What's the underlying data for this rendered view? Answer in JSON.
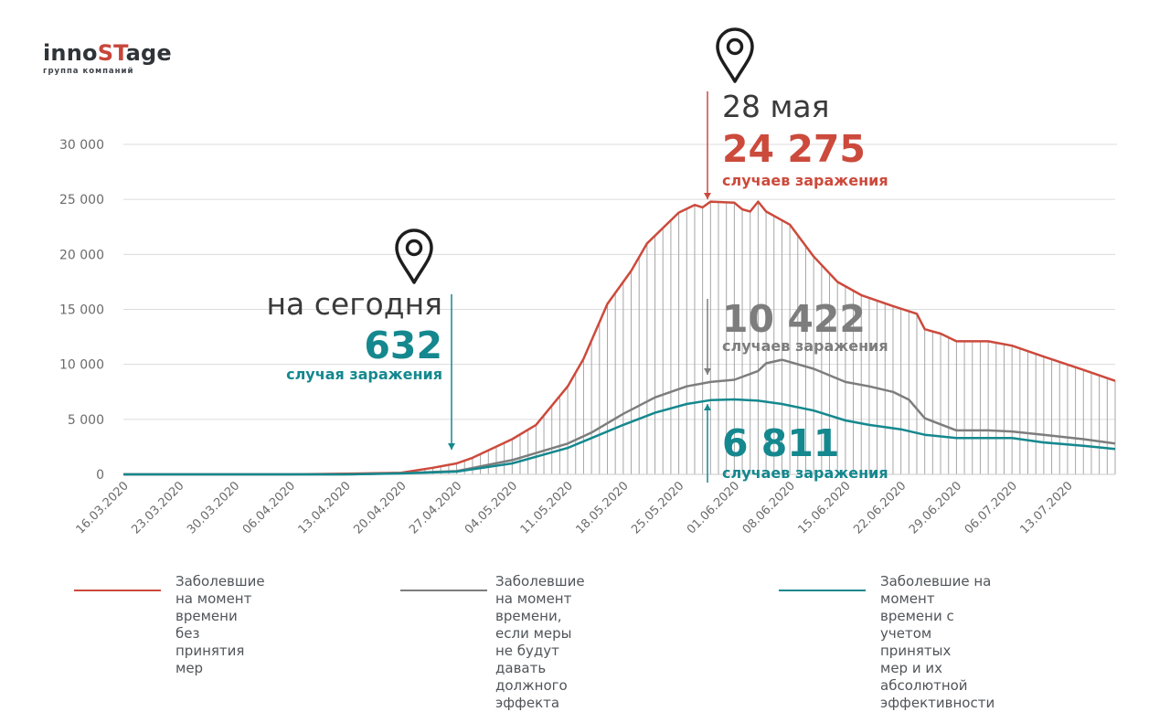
{
  "logo": {
    "word_a": "inno",
    "word_mark": "ST",
    "word_b": "age",
    "subtitle": "группа компаний"
  },
  "colors": {
    "red": "#cc4a3c",
    "gray": "#7d7d7d",
    "teal": "#14888e",
    "hatch": "#a6a6a6",
    "grid": "#dcdcdc",
    "axis_text": "#6b6b6b"
  },
  "annotations": {
    "today": {
      "date": "на сегодня",
      "value": "632",
      "caption": "случая заражения"
    },
    "peak": {
      "date": "28 мая",
      "value": "24 275",
      "caption": "случаев заражения"
    },
    "gray_peak": {
      "value": "10 422",
      "caption": "случаев заражения"
    },
    "teal_peak": {
      "value": "6 811",
      "caption": "случаев заражения"
    }
  },
  "legend": [
    {
      "label_lines": [
        "Заболевшие на момент",
        "времени без принятия мер"
      ],
      "color": "#cc4a3c"
    },
    {
      "label_lines": [
        "Заболевшие на момент времени,",
        "если меры не будут давать",
        "должного эффекта"
      ],
      "color": "#7d7d7d"
    },
    {
      "label_lines": [
        "Заболевшие на момент",
        "времени с учетом принятых",
        "мер и их абсолютной",
        "эффективности"
      ],
      "color": "#14888e"
    }
  ],
  "chart_data": {
    "type": "line",
    "x_start": "2020-03-16",
    "x_end": "2020-07-19",
    "ylim": [
      0,
      30000
    ],
    "yticks": [
      0,
      5000,
      10000,
      15000,
      20000,
      25000,
      30000
    ],
    "ytick_labels": [
      "0",
      "5 000",
      "10 000",
      "15 000",
      "20 000",
      "25 000",
      "30 000"
    ],
    "xtick_labels": [
      "16.03.2020",
      "23.03.2020",
      "30.03.2020",
      "06.04.2020",
      "13.04.2020",
      "20.04.2020",
      "27.04.2020",
      "04.05.2020",
      "11.05.2020",
      "18.05.2020",
      "25.05.2020",
      "01.06.2020",
      "08.06.2020",
      "15.06.2020",
      "22.06.2020",
      "29.06.2020",
      "06.07.2020",
      "13.07.2020"
    ],
    "grid": true,
    "series": [
      {
        "color": "#cc4a3c",
        "points": [
          [
            "2020-03-16",
            0
          ],
          [
            "2020-04-06",
            0
          ],
          [
            "2020-04-13",
            60
          ],
          [
            "2020-04-20",
            150
          ],
          [
            "2020-04-24",
            600
          ],
          [
            "2020-04-27",
            1000
          ],
          [
            "2020-04-29",
            1500
          ],
          [
            "2020-05-04",
            3200
          ],
          [
            "2020-05-07",
            4500
          ],
          [
            "2020-05-11",
            8000
          ],
          [
            "2020-05-13",
            10500
          ],
          [
            "2020-05-16",
            15500
          ],
          [
            "2020-05-19",
            18500
          ],
          [
            "2020-05-21",
            21000
          ],
          [
            "2020-05-25",
            23800
          ],
          [
            "2020-05-27",
            24500
          ],
          [
            "2020-05-28",
            24275
          ],
          [
            "2020-05-29",
            24800
          ],
          [
            "2020-06-01",
            24700
          ],
          [
            "2020-06-02",
            24100
          ],
          [
            "2020-06-03",
            23900
          ],
          [
            "2020-06-04",
            24800
          ],
          [
            "2020-06-05",
            23900
          ],
          [
            "2020-06-08",
            22700
          ],
          [
            "2020-06-11",
            19800
          ],
          [
            "2020-06-14",
            17500
          ],
          [
            "2020-06-17",
            16300
          ],
          [
            "2020-06-21",
            15300
          ],
          [
            "2020-06-24",
            14600
          ],
          [
            "2020-06-25",
            13200
          ],
          [
            "2020-06-27",
            12800
          ],
          [
            "2020-06-29",
            12100
          ],
          [
            "2020-07-03",
            12100
          ],
          [
            "2020-07-06",
            11700
          ],
          [
            "2020-07-10",
            10700
          ],
          [
            "2020-07-15",
            9500
          ],
          [
            "2020-07-19",
            8500
          ]
        ]
      },
      {
        "color": "#7d7d7d",
        "points": [
          [
            "2020-03-16",
            0
          ],
          [
            "2020-04-13",
            0
          ],
          [
            "2020-04-20",
            100
          ],
          [
            "2020-04-27",
            300
          ],
          [
            "2020-05-04",
            1300
          ],
          [
            "2020-05-11",
            2800
          ],
          [
            "2020-05-14",
            3800
          ],
          [
            "2020-05-18",
            5500
          ],
          [
            "2020-05-22",
            7000
          ],
          [
            "2020-05-26",
            8000
          ],
          [
            "2020-05-29",
            8400
          ],
          [
            "2020-06-01",
            8600
          ],
          [
            "2020-06-04",
            9400
          ],
          [
            "2020-06-05",
            10100
          ],
          [
            "2020-06-07",
            10422
          ],
          [
            "2020-06-11",
            9600
          ],
          [
            "2020-06-15",
            8400
          ],
          [
            "2020-06-18",
            8000
          ],
          [
            "2020-06-21",
            7500
          ],
          [
            "2020-06-23",
            6800
          ],
          [
            "2020-06-25",
            5100
          ],
          [
            "2020-06-29",
            4000
          ],
          [
            "2020-07-03",
            4000
          ],
          [
            "2020-07-06",
            3900
          ],
          [
            "2020-07-10",
            3600
          ],
          [
            "2020-07-15",
            3200
          ],
          [
            "2020-07-19",
            2800
          ]
        ]
      },
      {
        "color": "#14888e",
        "points": [
          [
            "2020-03-16",
            0
          ],
          [
            "2020-04-13",
            0
          ],
          [
            "2020-04-20",
            80
          ],
          [
            "2020-04-27",
            250
          ],
          [
            "2020-05-04",
            1000
          ],
          [
            "2020-05-11",
            2400
          ],
          [
            "2020-05-14",
            3300
          ],
          [
            "2020-05-18",
            4500
          ],
          [
            "2020-05-22",
            5600
          ],
          [
            "2020-05-26",
            6400
          ],
          [
            "2020-05-29",
            6750
          ],
          [
            "2020-06-01",
            6811
          ],
          [
            "2020-06-04",
            6700
          ],
          [
            "2020-06-07",
            6400
          ],
          [
            "2020-06-11",
            5800
          ],
          [
            "2020-06-15",
            4900
          ],
          [
            "2020-06-18",
            4500
          ],
          [
            "2020-06-22",
            4100
          ],
          [
            "2020-06-25",
            3600
          ],
          [
            "2020-06-29",
            3300
          ],
          [
            "2020-07-06",
            3300
          ],
          [
            "2020-07-10",
            2900
          ],
          [
            "2020-07-15",
            2600
          ],
          [
            "2020-07-19",
            2300
          ]
        ]
      }
    ]
  }
}
